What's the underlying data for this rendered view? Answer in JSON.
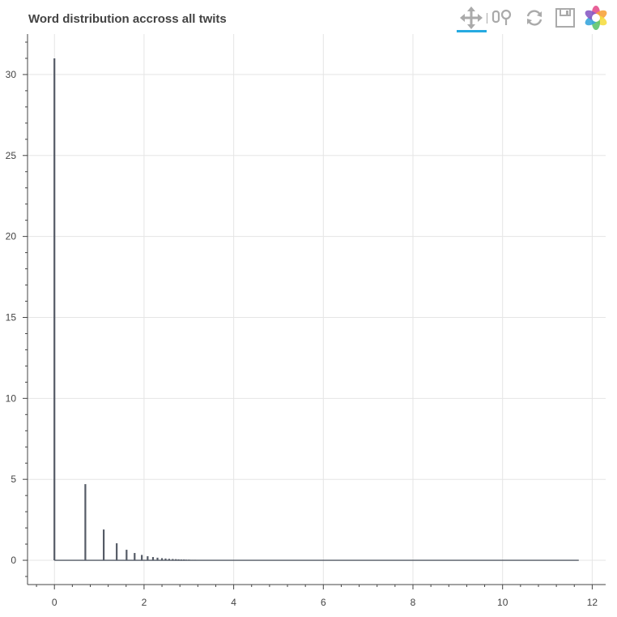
{
  "chart_data": {
    "type": "bar",
    "title": "Word distribution accross all twits",
    "xlabel": "",
    "ylabel": "",
    "xlim": [
      -0.6,
      12.3
    ],
    "ylim": [
      -1.5,
      32.5
    ],
    "xticks": [
      0,
      2,
      4,
      6,
      8,
      10,
      12
    ],
    "yticks": [
      0,
      5,
      10,
      15,
      20,
      25,
      30
    ],
    "x_minor_step": 0.4,
    "y_minor_step": 1,
    "grid": true,
    "legend": "none",
    "bar_color": "#555b66",
    "x": [
      0.0,
      0.69,
      1.1,
      1.39,
      1.61,
      1.79,
      1.95,
      2.08,
      2.2,
      2.3,
      2.4,
      2.48,
      2.56,
      2.64,
      2.71,
      2.77,
      2.83,
      2.89,
      2.94,
      3.0,
      3.04,
      3.09,
      3.14,
      3.18,
      3.22
    ],
    "values": [
      31.0,
      4.7,
      1.9,
      1.05,
      0.65,
      0.45,
      0.33,
      0.25,
      0.2,
      0.16,
      0.13,
      0.11,
      0.09,
      0.08,
      0.07,
      0.06,
      0.05,
      0.05,
      0.04,
      0.04,
      0.03,
      0.03,
      0.03,
      0.02,
      0.02
    ],
    "baseline_range": [
      0,
      11.7
    ]
  },
  "toolbar": {
    "tools": [
      {
        "name": "pan-tool-icon",
        "active": true
      },
      {
        "name": "box-zoom-tool-icon",
        "active": false
      },
      {
        "name": "wheel-zoom-tool-icon",
        "active": false
      },
      {
        "name": "reset-tool-icon",
        "active": false
      },
      {
        "name": "save-tool-icon",
        "active": false
      },
      {
        "name": "bokeh-logo-icon",
        "active": false
      }
    ],
    "active_color": "#26aae1",
    "icon_color": "#aaaaaa"
  },
  "colors": {
    "grid": "#e5e5e5",
    "axis": "#444444",
    "bar": "#555b66"
  }
}
